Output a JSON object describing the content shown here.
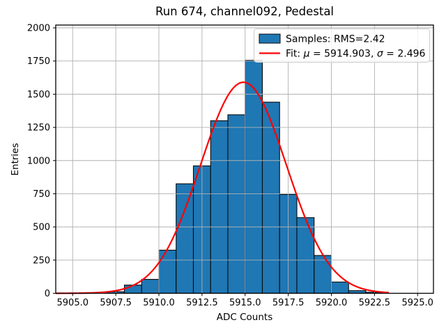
{
  "chart_data": {
    "type": "bar",
    "subtype": "histogram-with-gaussian-fit",
    "title": "Run 674, channel092, Pedestal",
    "xlabel": "ADC Counts",
    "ylabel": "Entries",
    "xlim": [
      5904.02,
      5925.92
    ],
    "ylim": [
      0,
      2021
    ],
    "grid": true,
    "xtick_values": [
      5905.0,
      5907.5,
      5910.0,
      5912.5,
      5915.0,
      5917.5,
      5920.0,
      5922.5,
      5925.0
    ],
    "xtick_labels": [
      "5905.0",
      "5907.5",
      "5910.0",
      "5912.5",
      "5915.0",
      "5917.5",
      "5920.0",
      "5922.5",
      "5925.0"
    ],
    "ytick_values": [
      0,
      250,
      500,
      750,
      1000,
      1250,
      1500,
      1750,
      2000
    ],
    "ytick_labels": [
      "0",
      "250",
      "500",
      "750",
      "1000",
      "1250",
      "1500",
      "1750",
      "2000"
    ],
    "histogram": {
      "legend_label": "Samples: RMS=2.42",
      "rms": 2.42,
      "bin_width": 1,
      "bin_starts": [
        5907,
        5908,
        5909,
        5910,
        5911,
        5912,
        5913,
        5914,
        5915,
        5916,
        5917,
        5918,
        5919,
        5920,
        5921,
        5922
      ],
      "counts": [
        12,
        62,
        105,
        325,
        825,
        960,
        1300,
        1345,
        1755,
        1440,
        745,
        570,
        285,
        85,
        20,
        8
      ],
      "fill_color": "#1f77b4",
      "edge_color": "#0a0a0a"
    },
    "fit": {
      "legend_label": "Fit: μ = 5914.903, σ = 2.496",
      "mu": 5914.903,
      "sigma": 2.496,
      "amplitude": 1590,
      "x_range": [
        5904.05,
        5923.3
      ],
      "color": "#ff0000"
    },
    "legend_position": "upper right",
    "colors": {
      "grid": "#b0b0b0",
      "spine": "#000000",
      "legend_border": "#cccccc",
      "legend_bg": "rgba(255,255,255,0.8)"
    }
  }
}
